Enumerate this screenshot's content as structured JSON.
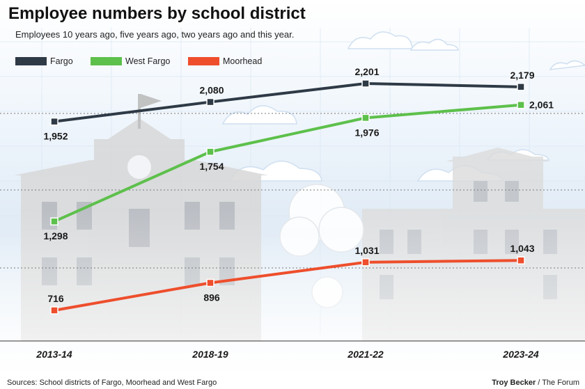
{
  "chart_data": {
    "type": "line",
    "title": "Employee numbers by school district",
    "subtitle": "Employees 10 years ago, five years ago, two years ago and this year.",
    "categories": [
      "2013-14",
      "2018-19",
      "2021-22",
      "2023-24"
    ],
    "series": [
      {
        "name": "Fargo",
        "color": "#2e3a46",
        "values": [
          1952,
          2080,
          2201,
          2179
        ]
      },
      {
        "name": "West Fargo",
        "color": "#5dc04b",
        "values": [
          1298,
          1754,
          1976,
          2061
        ]
      },
      {
        "name": "Moorhead",
        "color": "#ee4e2c",
        "values": [
          716,
          896,
          1031,
          1043
        ]
      }
    ],
    "data_labels": {
      "Fargo": [
        "1,952",
        "2,080",
        "2,201",
        "2,179"
      ],
      "West Fargo": [
        "1,298",
        "1,754",
        "1,976",
        "2,061"
      ],
      "Moorhead": [
        "716",
        "896",
        "1,031",
        "1,043"
      ]
    },
    "legend_position": "top-left",
    "grid": false,
    "source": "Sources: School districts of Fargo, Moorhead and West Fargo",
    "credit_name": "Troy Becker",
    "credit_org": " / The Forum"
  }
}
